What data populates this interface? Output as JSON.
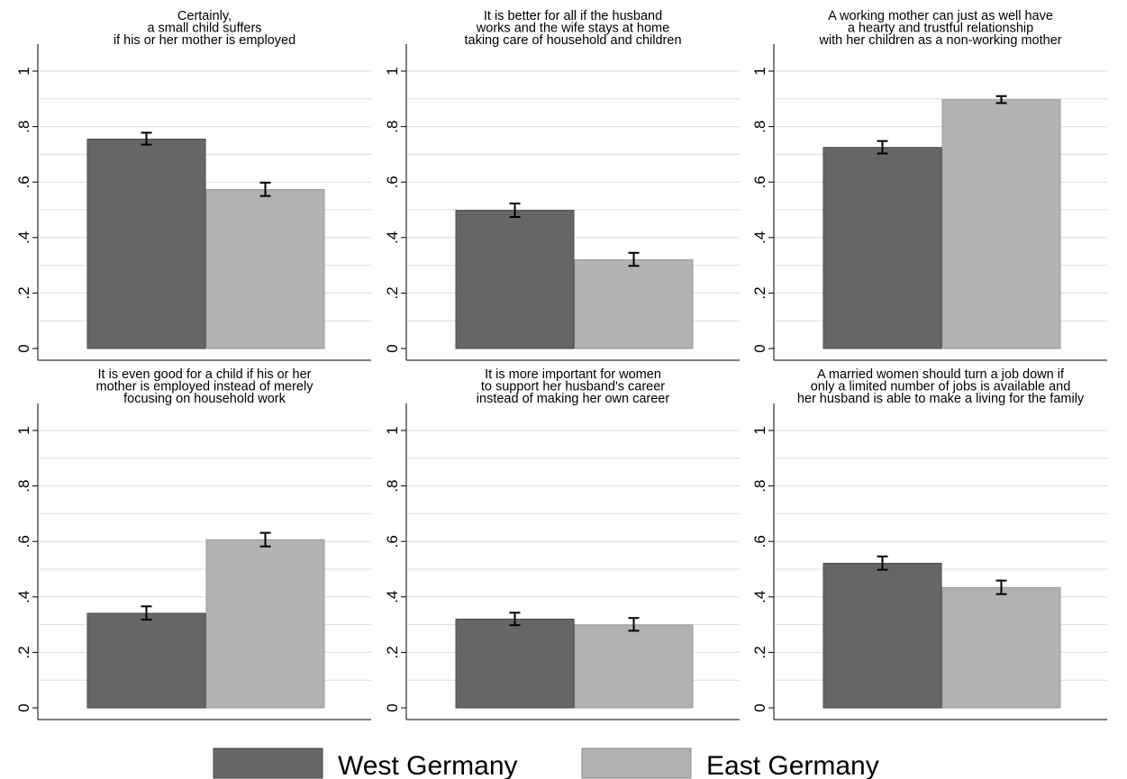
{
  "colors": {
    "west": "#666666",
    "east": "#b2b2b2",
    "grid": "#dcdcdc",
    "axis": "#000000",
    "errorbar": "#000000"
  },
  "legend": {
    "position": "bottom-center",
    "items": [
      {
        "label": "West Germany",
        "color": "#666666"
      },
      {
        "label": "East Germany",
        "color": "#b2b2b2"
      }
    ]
  },
  "chart_data": [
    {
      "type": "bar",
      "title": [
        "Certainly,",
        "a small child suffers",
        "if his or her mother is employed"
      ],
      "categories": [
        "West Germany",
        "East Germany"
      ],
      "values": [
        0.755,
        0.573
      ],
      "error_low": [
        0.735,
        0.55
      ],
      "error_high": [
        0.778,
        0.598
      ],
      "ylim": [
        0,
        1
      ],
      "yticks": [
        0,
        0.2,
        0.4,
        0.6,
        0.8,
        1
      ],
      "ytick_labels": [
        "0",
        ".2",
        ".4",
        ".6",
        ".8",
        "1"
      ],
      "grid": true
    },
    {
      "type": "bar",
      "title": [
        "It is better for all if the husband",
        "works and the wife stays at home",
        "taking care of household and children"
      ],
      "categories": [
        "West Germany",
        "East Germany"
      ],
      "values": [
        0.498,
        0.32
      ],
      "error_low": [
        0.474,
        0.298
      ],
      "error_high": [
        0.523,
        0.345
      ],
      "ylim": [
        0,
        1
      ],
      "yticks": [
        0,
        0.2,
        0.4,
        0.6,
        0.8,
        1
      ],
      "ytick_labels": [
        "0",
        ".2",
        ".4",
        ".6",
        ".8",
        "1"
      ],
      "grid": true
    },
    {
      "type": "bar",
      "title": [
        "A working mother can just as well have",
        "a hearty and trustful relationship",
        "with her children as a non-working mother"
      ],
      "categories": [
        "West Germany",
        "East Germany"
      ],
      "values": [
        0.725,
        0.897
      ],
      "error_low": [
        0.703,
        0.885
      ],
      "error_high": [
        0.748,
        0.91
      ],
      "ylim": [
        0,
        1
      ],
      "yticks": [
        0,
        0.2,
        0.4,
        0.6,
        0.8,
        1
      ],
      "ytick_labels": [
        "0",
        ".2",
        ".4",
        ".6",
        ".8",
        "1"
      ],
      "grid": true
    },
    {
      "type": "bar",
      "title": [
        "It is even good for a child if his or her",
        "mother is employed instead of merely",
        "focusing on household work"
      ],
      "categories": [
        "West Germany",
        "East Germany"
      ],
      "values": [
        0.341,
        0.606
      ],
      "error_low": [
        0.318,
        0.582
      ],
      "error_high": [
        0.366,
        0.631
      ],
      "ylim": [
        0,
        1
      ],
      "yticks": [
        0,
        0.2,
        0.4,
        0.6,
        0.8,
        1
      ],
      "ytick_labels": [
        "0",
        ".2",
        ".4",
        ".6",
        ".8",
        "1"
      ],
      "grid": true
    },
    {
      "type": "bar",
      "title": [
        "It is more important for women",
        "to support her husband's career",
        "instead of making her own career"
      ],
      "categories": [
        "West Germany",
        "East Germany"
      ],
      "values": [
        0.32,
        0.299
      ],
      "error_low": [
        0.298,
        0.278
      ],
      "error_high": [
        0.343,
        0.324
      ],
      "ylim": [
        0,
        1
      ],
      "yticks": [
        0,
        0.2,
        0.4,
        0.6,
        0.8,
        1
      ],
      "ytick_labels": [
        "0",
        ".2",
        ".4",
        ".6",
        ".8",
        "1"
      ],
      "grid": true
    },
    {
      "type": "bar",
      "title": [
        "A married women should turn a job down if",
        "only a limited number of jobs is available and",
        "her husband is able to make a living for the family"
      ],
      "categories": [
        "West Germany",
        "East Germany"
      ],
      "values": [
        0.521,
        0.434
      ],
      "error_low": [
        0.498,
        0.41
      ],
      "error_high": [
        0.546,
        0.459
      ],
      "ylim": [
        0,
        1
      ],
      "yticks": [
        0,
        0.2,
        0.4,
        0.6,
        0.8,
        1
      ],
      "ytick_labels": [
        "0",
        ".2",
        ".4",
        ".6",
        ".8",
        "1"
      ],
      "grid": true
    }
  ]
}
